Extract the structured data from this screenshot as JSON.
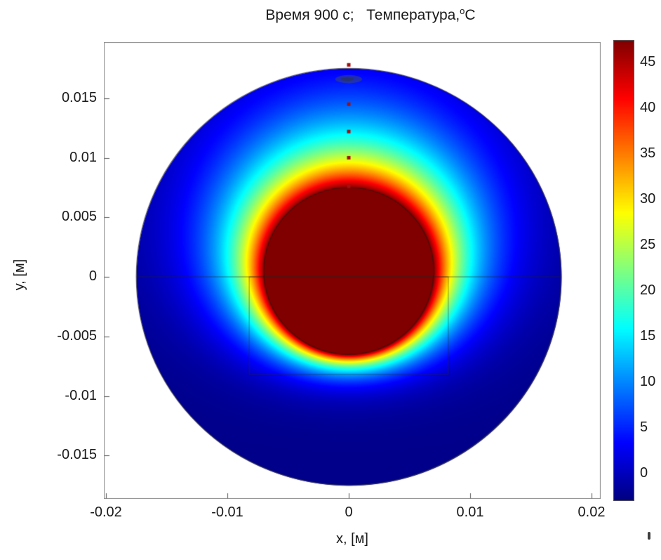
{
  "title": {
    "prefix": "Время 900 с;   Температура,",
    "sup": "o",
    "suffix": "C",
    "full": "Время 900 с;  Температура,°C"
  },
  "axes": {
    "x_label": "x, [м]",
    "y_label": "y, [м]",
    "x_tick_labels": [
      "-0.02",
      "-0.01",
      "0",
      "0.01",
      "0.02"
    ],
    "y_tick_labels": [
      "0.015",
      "0.01",
      "0.005",
      "0",
      "-0.005",
      "-0.01",
      "-0.015"
    ]
  },
  "colorbar": {
    "tick_labels": [
      "45",
      "40",
      "35",
      "30",
      "25",
      "20",
      "15",
      "10",
      "5",
      "0"
    ]
  },
  "chart_data": {
    "type": "heatmap",
    "title": "Время 900 с;  Температура,°C",
    "xlabel": "x, [м]",
    "ylabel": "y, [м]",
    "x_range": [
      -0.02,
      0.02
    ],
    "y_range": [
      -0.0186,
      0.0197
    ],
    "x_ticks": [
      -0.02,
      -0.01,
      0,
      0.01,
      0.02
    ],
    "y_ticks": [
      0.015,
      0.01,
      0.005,
      0,
      -0.005,
      -0.01,
      -0.015
    ],
    "colormap": "jet",
    "colorbar_range": [
      -3,
      47.5
    ],
    "colorbar_ticks": [
      45,
      40,
      35,
      30,
      25,
      20,
      15,
      10,
      5,
      0
    ],
    "geometry": {
      "outer_circle": {
        "cx": 0,
        "cy": 0,
        "r": 0.0175
      },
      "core_circle": {
        "cx": 0,
        "cy": 0.0005,
        "r": 0.007
      },
      "square": {
        "x_min": -0.0082,
        "x_max": 0.0082,
        "y_min": -0.0082,
        "y_max": 0
      },
      "interface_line_y": 0,
      "sensor_points": [
        [
          0,
          0.0178
        ],
        [
          0,
          0.0145
        ],
        [
          0,
          0.0122
        ],
        [
          0,
          0.01
        ],
        [
          0,
          0.0076
        ]
      ],
      "smudge": {
        "cx": 0,
        "cy": 0.0166
      }
    },
    "field_model": {
      "core_temp": 47.5,
      "ambient": -2.5,
      "core_radius": 0.007,
      "core_center": [
        0,
        0.0005
      ],
      "decay_up": 0.0045,
      "decay_side": 0.003,
      "decay_down": 0.0013
    }
  }
}
